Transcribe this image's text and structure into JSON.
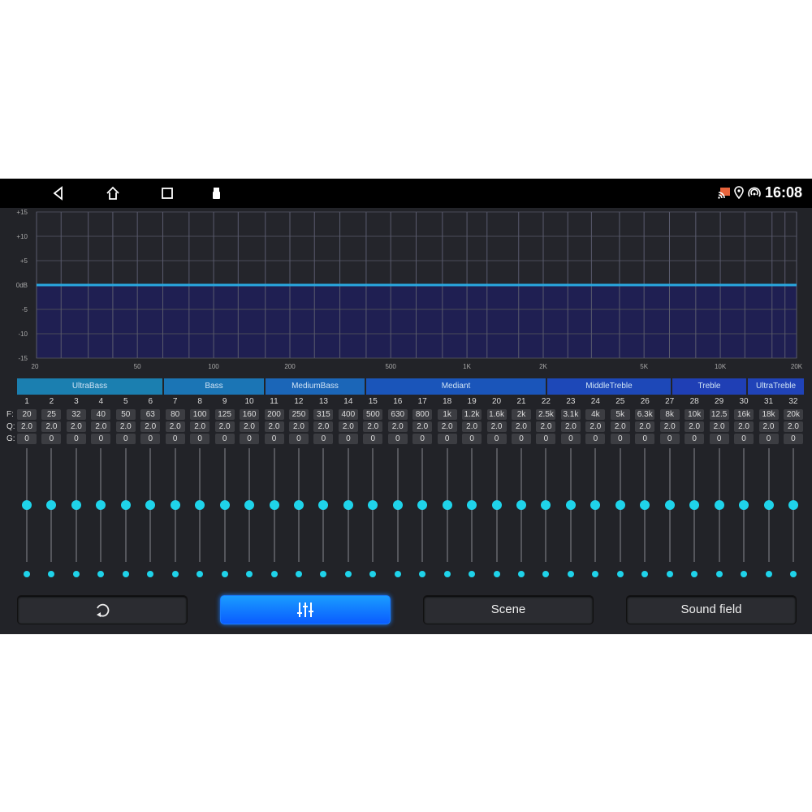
{
  "status_bar": {
    "time": "16:08",
    "icons": [
      "back-icon",
      "home-icon",
      "recents-icon",
      "usb-icon",
      "cast-icon",
      "location-icon",
      "hotspot-icon"
    ]
  },
  "chart_data": {
    "type": "line",
    "x_scale": "log",
    "xlim": [
      20,
      20000
    ],
    "ylim": [
      -15,
      15
    ],
    "x_ticks": [
      "20",
      "50",
      "100",
      "200",
      "500",
      "1K",
      "2K",
      "5K",
      "10K",
      "20K"
    ],
    "x_tick_values": [
      20,
      50,
      100,
      200,
      500,
      1000,
      2000,
      5000,
      10000,
      20000
    ],
    "y_ticks": [
      "+15",
      "+10",
      "+5",
      "0dB",
      "-5",
      "-10",
      "-15"
    ],
    "y_tick_values": [
      15,
      10,
      5,
      0,
      -5,
      -10,
      -15
    ],
    "grid": true,
    "x": [
      20,
      25,
      32,
      40,
      50,
      63,
      80,
      100,
      125,
      160,
      200,
      250,
      315,
      400,
      500,
      630,
      800,
      1000,
      1200,
      1600,
      2000,
      2500,
      3100,
      4000,
      5000,
      6300,
      8000,
      10000,
      12500,
      16000,
      18000,
      20000
    ],
    "series": [
      {
        "values": [
          0,
          0,
          0,
          0,
          0,
          0,
          0,
          0,
          0,
          0,
          0,
          0,
          0,
          0,
          0,
          0,
          0,
          0,
          0,
          0,
          0,
          0,
          0,
          0,
          0,
          0,
          0,
          0,
          0,
          0,
          0,
          0
        ]
      }
    ],
    "colors": {
      "line": "#29a8e0",
      "fill": "#1f1f52"
    }
  },
  "band_groups": [
    {
      "label": "UltraBass",
      "color": "#1b7fb0"
    },
    {
      "label": "Bass",
      "color": "#1b75b5"
    },
    {
      "label": "MediumBass",
      "color": "#1b66b8"
    },
    {
      "label": "Mediant",
      "color": "#1a55ba"
    },
    {
      "label": "MiddleTreble",
      "color": "#1d48b8"
    },
    {
      "label": "Treble",
      "color": "#1f3fb5"
    },
    {
      "label": "UltraTreble",
      "color": "#2043b8"
    }
  ],
  "row_labels": {
    "f": "F:",
    "q": "Q:",
    "g": "G:"
  },
  "bands": {
    "numbers": [
      "1",
      "2",
      "3",
      "4",
      "5",
      "6",
      "7",
      "8",
      "9",
      "10",
      "11",
      "12",
      "13",
      "14",
      "15",
      "16",
      "17",
      "18",
      "19",
      "20",
      "21",
      "22",
      "23",
      "24",
      "25",
      "26",
      "27",
      "28",
      "29",
      "30",
      "31",
      "32"
    ],
    "freq": [
      "20",
      "25",
      "32",
      "40",
      "50",
      "63",
      "80",
      "100",
      "125",
      "160",
      "200",
      "250",
      "315",
      "400",
      "500",
      "630",
      "800",
      "1k",
      "1.2k",
      "1.6k",
      "2k",
      "2.5k",
      "3.1k",
      "4k",
      "5k",
      "6.3k",
      "8k",
      "10k",
      "12.5",
      "16k",
      "18k",
      "20k"
    ],
    "q": [
      "2.0",
      "2.0",
      "2.0",
      "2.0",
      "2.0",
      "2.0",
      "2.0",
      "2.0",
      "2.0",
      "2.0",
      "2.0",
      "2.0",
      "2.0",
      "2.0",
      "2.0",
      "2.0",
      "2.0",
      "2.0",
      "2.0",
      "2.0",
      "2.0",
      "2.0",
      "2.0",
      "2.0",
      "2.0",
      "2.0",
      "2.0",
      "2.0",
      "2.0",
      "2.0",
      "2.0",
      "2.0"
    ],
    "gain": [
      "0",
      "0",
      "0",
      "0",
      "0",
      "0",
      "0",
      "0",
      "0",
      "0",
      "0",
      "0",
      "0",
      "0",
      "0",
      "0",
      "0",
      "0",
      "0",
      "0",
      "0",
      "0",
      "0",
      "0",
      "0",
      "0",
      "0",
      "0",
      "0",
      "0",
      "0",
      "0"
    ],
    "slider_level": 0.5
  },
  "buttons": {
    "reset_icon": "reset-icon",
    "eq_icon": "equalizer-icon",
    "scene": "Scene",
    "sound_field": "Sound field"
  },
  "accent": "#1fd3ea"
}
